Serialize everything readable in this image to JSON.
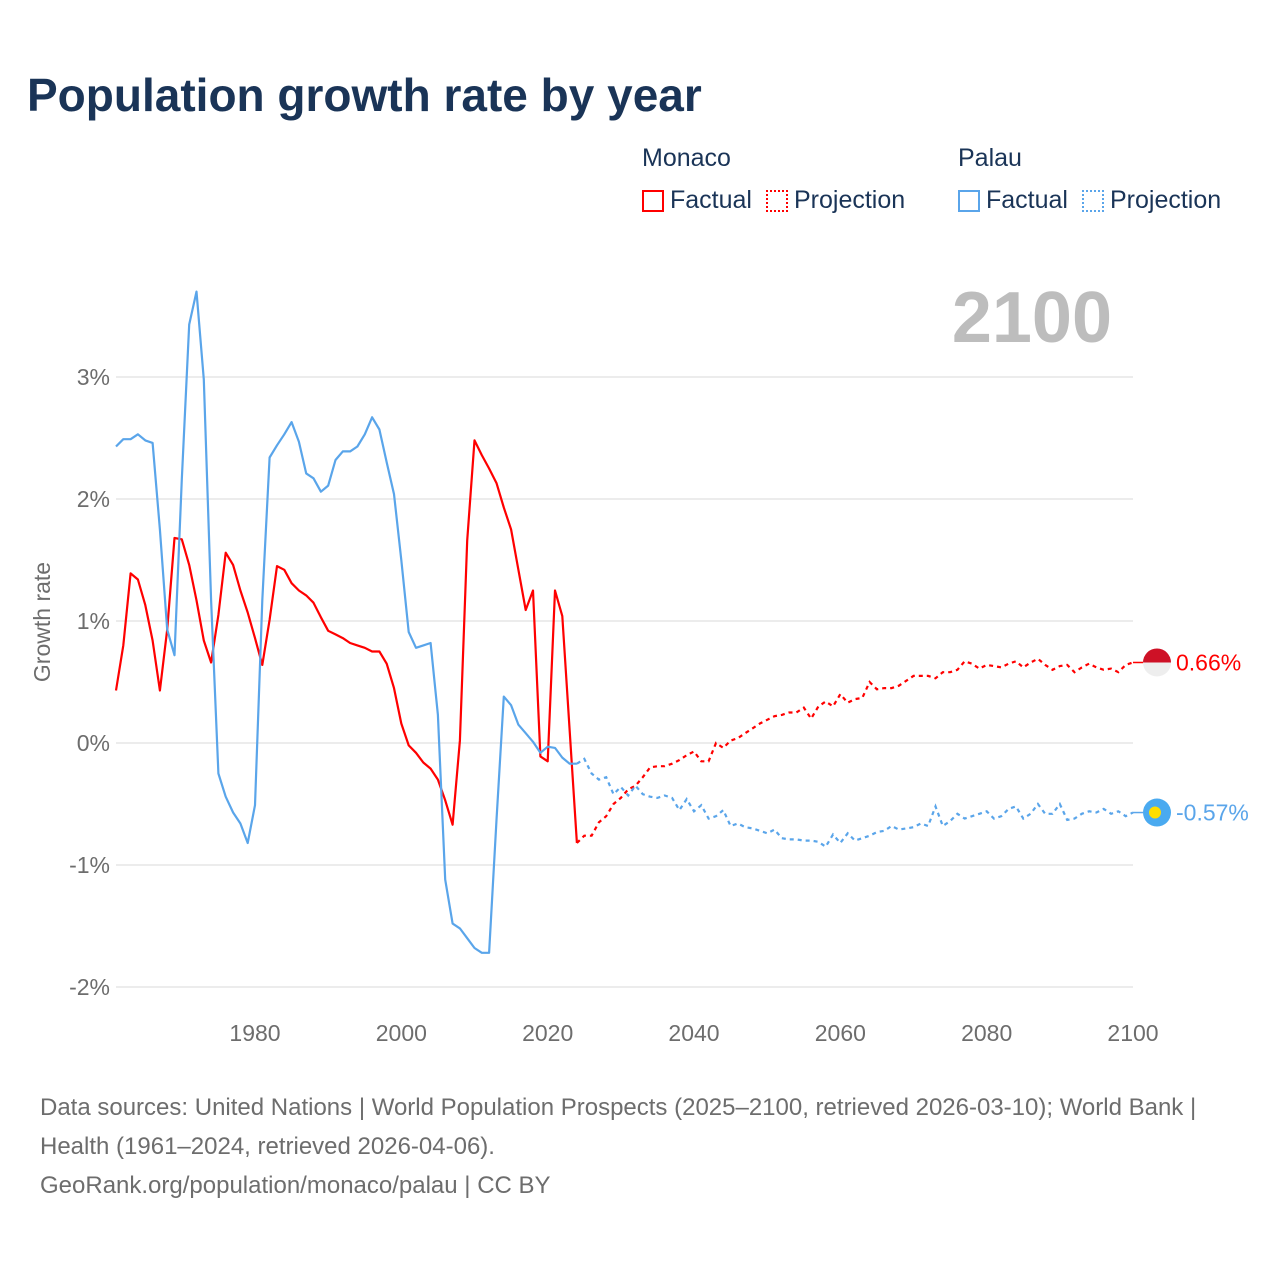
{
  "title": "Population growth rate by year",
  "legend": {
    "groups": [
      {
        "name": "Monaco",
        "factual": "Factual",
        "projection": "Projection",
        "color": "#ff0000"
      },
      {
        "name": "Palau",
        "factual": "Factual",
        "projection": "Projection",
        "color": "#5aa5ea"
      }
    ]
  },
  "year_label": "2100",
  "footer": {
    "sources": "Data sources: United Nations | World Population Prospects (2025–2100, retrieved 2026-03-10); World Bank | Health (1961–2024, retrieved 2026-04-06).",
    "credit": "GeoRank.org/population/monaco/palau | CC BY"
  },
  "chart_data": {
    "type": "line",
    "title": "Population growth rate by year",
    "ylabel": "Growth rate",
    "xlabel": "",
    "xlim": [
      1961,
      2100
    ],
    "ylim": [
      -2.1,
      3.8
    ],
    "xticks": [
      {
        "v": 1980,
        "label": "1980"
      },
      {
        "v": 2000,
        "label": "2000"
      },
      {
        "v": 2020,
        "label": "2020"
      },
      {
        "v": 2040,
        "label": "2040"
      },
      {
        "v": 2060,
        "label": "2060"
      },
      {
        "v": 2080,
        "label": "2080"
      },
      {
        "v": 2100,
        "label": "2100"
      }
    ],
    "yticks": [
      {
        "v": 3,
        "label": "3%"
      },
      {
        "v": 2,
        "label": "2%"
      },
      {
        "v": 1,
        "label": "1%"
      },
      {
        "v": 0,
        "label": "0%"
      },
      {
        "v": -1,
        "label": "-1%"
      },
      {
        "v": -2,
        "label": "-2%"
      }
    ],
    "grid": true,
    "series": [
      {
        "name": "Monaco",
        "color": "#ff0000",
        "end_label": "0.66%",
        "factual_start": 1961,
        "factual": [
          0.43,
          0.8,
          1.39,
          1.34,
          1.13,
          0.84,
          0.43,
          0.93,
          1.68,
          1.67,
          1.46,
          1.17,
          0.84,
          0.66,
          1.05,
          1.56,
          1.46,
          1.25,
          1.07,
          0.86,
          0.64,
          1.01,
          1.45,
          1.42,
          1.31,
          1.25,
          1.21,
          1.15,
          1.03,
          0.92,
          0.89,
          0.86,
          0.82,
          0.8,
          0.78,
          0.75,
          0.75,
          0.65,
          0.45,
          0.16,
          -0.02,
          -0.08,
          -0.16,
          -0.21,
          -0.3,
          -0.47,
          -0.67,
          0.02,
          1.66,
          2.48,
          2.36,
          2.25,
          2.13,
          1.93,
          1.75,
          1.42,
          1.09,
          1.25,
          -0.11,
          -0.15,
          1.25,
          1.04,
          0.11,
          -0.82
        ],
        "projection_start": 2024,
        "projection": [
          -0.82,
          -0.76,
          -0.76,
          -0.65,
          -0.6,
          -0.5,
          -0.45,
          -0.38,
          -0.35,
          -0.28,
          -0.2,
          -0.19,
          -0.19,
          -0.17,
          -0.14,
          -0.1,
          -0.07,
          -0.15,
          -0.15,
          0.0,
          -0.04,
          0.02,
          0.04,
          0.08,
          0.12,
          0.16,
          0.19,
          0.22,
          0.23,
          0.25,
          0.25,
          0.29,
          0.2,
          0.3,
          0.34,
          0.3,
          0.4,
          0.33,
          0.36,
          0.37,
          0.5,
          0.44,
          0.45,
          0.45,
          0.47,
          0.51,
          0.55,
          0.55,
          0.55,
          0.53,
          0.58,
          0.58,
          0.6,
          0.67,
          0.65,
          0.61,
          0.64,
          0.63,
          0.62,
          0.65,
          0.67,
          0.62,
          0.66,
          0.69,
          0.64,
          0.6,
          0.63,
          0.64,
          0.58,
          0.62,
          0.65,
          0.62,
          0.6,
          0.61,
          0.58,
          0.64,
          0.66
        ]
      },
      {
        "name": "Palau",
        "color": "#5aa5ea",
        "end_label": "-0.57%",
        "factual_start": 1961,
        "factual": [
          2.43,
          2.49,
          2.49,
          2.53,
          2.48,
          2.46,
          1.75,
          0.93,
          0.72,
          2.16,
          3.43,
          3.7,
          2.98,
          1.17,
          -0.25,
          -0.44,
          -0.57,
          -0.66,
          -0.82,
          -0.51,
          1.17,
          2.34,
          2.44,
          2.53,
          2.63,
          2.47,
          2.21,
          2.17,
          2.06,
          2.11,
          2.32,
          2.39,
          2.39,
          2.43,
          2.53,
          2.67,
          2.57,
          2.3,
          2.04,
          1.5,
          0.91,
          0.78,
          0.8,
          0.82,
          0.23,
          -1.12,
          -1.48,
          -1.52,
          -1.6,
          -1.68,
          -1.72,
          -1.72,
          -0.63,
          0.38,
          0.31,
          0.15,
          0.08,
          0.01,
          -0.08,
          -0.03,
          -0.04,
          -0.12,
          -0.17,
          -0.17
        ],
        "projection_start": 2024,
        "projection": [
          -0.17,
          -0.13,
          -0.25,
          -0.3,
          -0.28,
          -0.42,
          -0.36,
          -0.43,
          -0.35,
          -0.42,
          -0.44,
          -0.45,
          -0.43,
          -0.45,
          -0.55,
          -0.46,
          -0.56,
          -0.51,
          -0.62,
          -0.6,
          -0.55,
          -0.68,
          -0.66,
          -0.69,
          -0.7,
          -0.72,
          -0.74,
          -0.71,
          -0.78,
          -0.79,
          -0.79,
          -0.8,
          -0.8,
          -0.81,
          -0.85,
          -0.75,
          -0.82,
          -0.74,
          -0.8,
          -0.78,
          -0.76,
          -0.73,
          -0.72,
          -0.68,
          -0.71,
          -0.7,
          -0.69,
          -0.66,
          -0.68,
          -0.52,
          -0.68,
          -0.64,
          -0.58,
          -0.62,
          -0.6,
          -0.58,
          -0.56,
          -0.62,
          -0.6,
          -0.54,
          -0.52,
          -0.62,
          -0.58,
          -0.5,
          -0.58,
          -0.58,
          -0.5,
          -0.63,
          -0.62,
          -0.58,
          -0.56,
          -0.57,
          -0.54,
          -0.58,
          -0.56,
          -0.6,
          -0.57
        ]
      }
    ]
  }
}
